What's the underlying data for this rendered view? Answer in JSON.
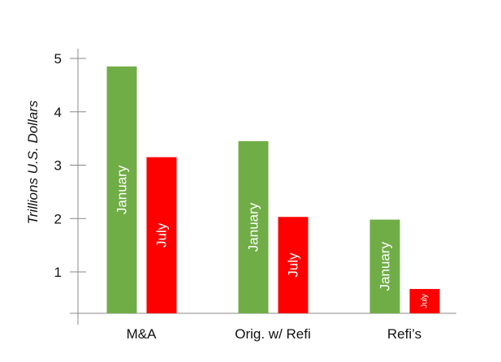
{
  "chart_data": {
    "type": "bar",
    "ylabel": "Trillions U.S. Dollars",
    "categories": [
      "M&A",
      "Orig. w/ Refi",
      "Refi’s"
    ],
    "yticks": [
      1,
      2,
      3,
      4,
      5
    ],
    "ylim": [
      0.25,
      5.1
    ],
    "series": [
      {
        "name": "January",
        "color": "#70ad47",
        "values": [
          4.85,
          3.45,
          1.98
        ]
      },
      {
        "name": "July",
        "color": "#ff0000",
        "values": [
          3.15,
          2.03,
          0.68
        ]
      }
    ],
    "grid": false,
    "legend": "none (series names shown inside bars)"
  }
}
